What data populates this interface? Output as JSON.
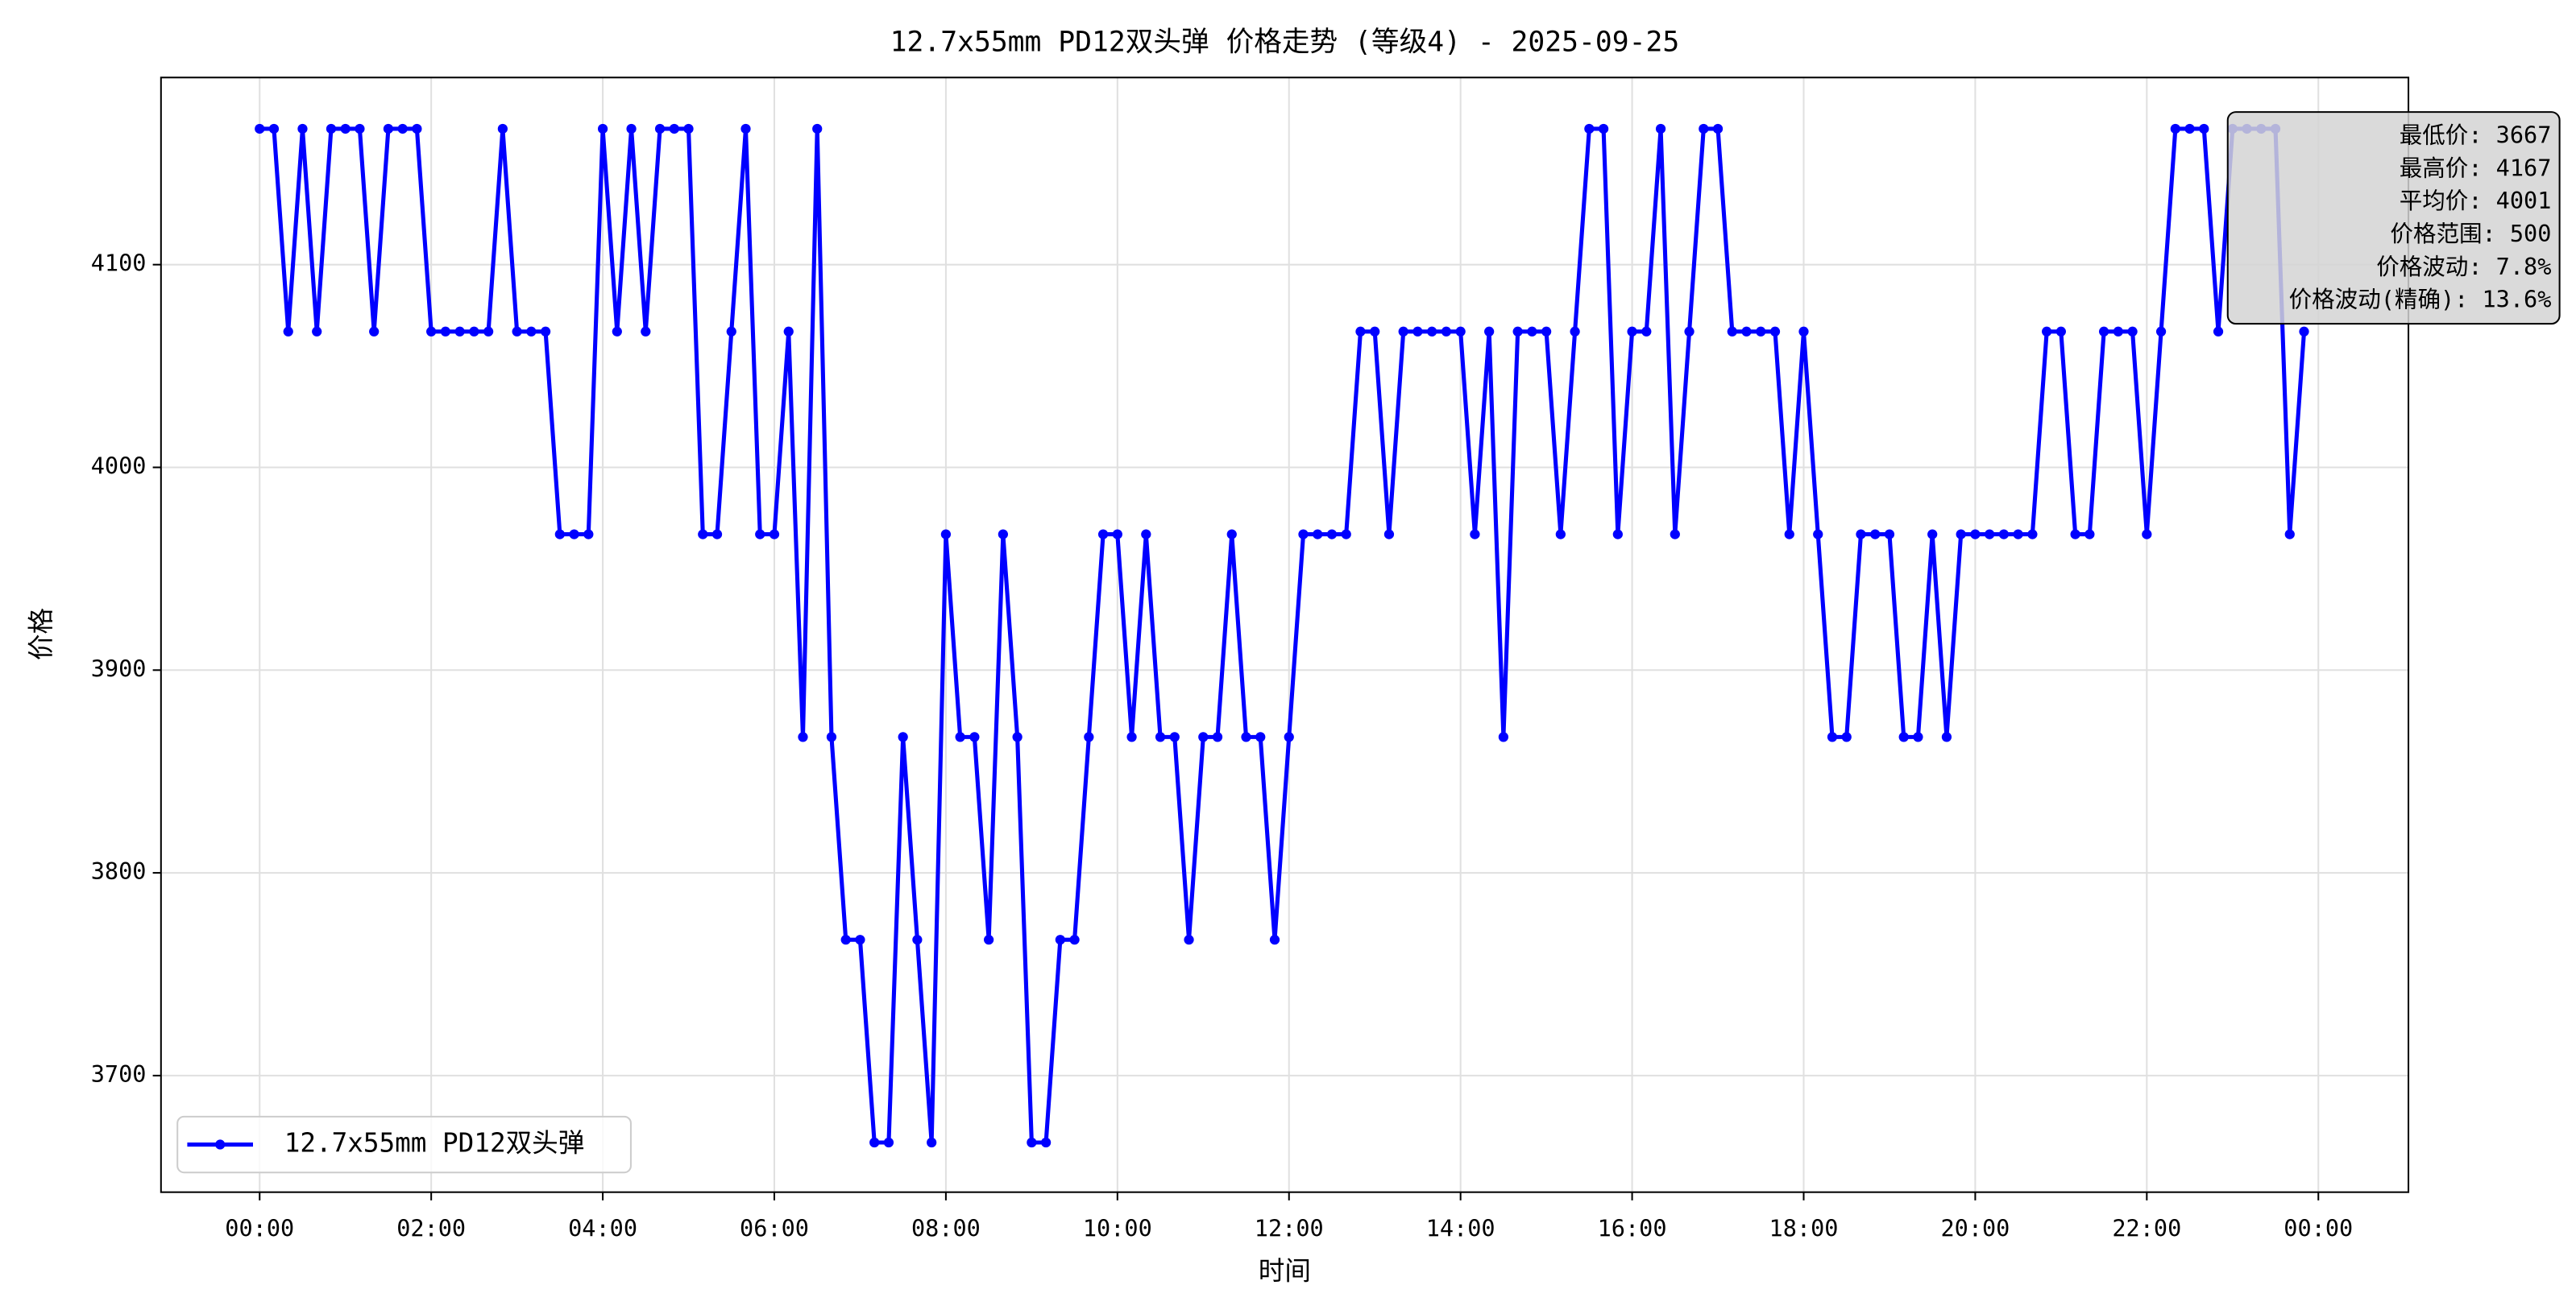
{
  "chart_data": {
    "type": "line",
    "title": "12.7x55mm PD12双头弹 价格走势 (等级4) - 2025-09-25",
    "x_label": "时间",
    "y_label": "价格",
    "x": [
      0,
      10,
      20,
      30,
      40,
      50,
      60,
      70,
      80,
      90,
      100,
      110,
      120,
      130,
      140,
      150,
      160,
      170,
      180,
      190,
      200,
      210,
      220,
      230,
      240,
      250,
      260,
      270,
      280,
      290,
      300,
      310,
      320,
      330,
      340,
      350,
      360,
      370,
      380,
      390,
      400,
      410,
      420,
      430,
      440,
      450,
      460,
      470,
      480,
      490,
      500,
      510,
      520,
      530,
      540,
      550,
      560,
      570,
      580,
      590,
      600,
      610,
      620,
      630,
      640,
      650,
      660,
      670,
      680,
      690,
      700,
      710,
      720,
      730,
      740,
      750,
      760,
      770,
      780,
      790,
      800,
      810,
      820,
      830,
      840,
      850,
      860,
      870,
      880,
      890,
      900,
      910,
      920,
      930,
      940,
      950,
      960,
      970,
      980,
      990,
      1000,
      1010,
      1020,
      1030,
      1040,
      1050,
      1060,
      1070,
      1080,
      1090,
      1100,
      1110,
      1120,
      1130,
      1140,
      1150,
      1160,
      1170,
      1180,
      1190,
      1200,
      1210,
      1220,
      1230,
      1240,
      1250,
      1260,
      1270,
      1280,
      1290,
      1300,
      1310,
      1320,
      1330,
      1340,
      1350,
      1360,
      1370,
      1380,
      1390,
      1400,
      1410,
      1420,
      1430
    ],
    "series": [
      {
        "name": "12.7x55mm PD12双头弹",
        "color": "#0000ff",
        "values": [
          4167,
          4167,
          4067,
          4167,
          4067,
          4167,
          4167,
          4167,
          4067,
          4167,
          4167,
          4167,
          4067,
          4067,
          4067,
          4067,
          4067,
          4167,
          4067,
          4067,
          4067,
          3967,
          3967,
          3967,
          4167,
          4067,
          4167,
          4067,
          4167,
          4167,
          4167,
          3967,
          3967,
          4067,
          4167,
          3967,
          3967,
          4067,
          3867,
          4167,
          3867,
          3767,
          3767,
          3667,
          3667,
          3867,
          3767,
          3667,
          3967,
          3867,
          3867,
          3767,
          3967,
          3867,
          3667,
          3667,
          3767,
          3767,
          3867,
          3967,
          3967,
          3867,
          3967,
          3867,
          3867,
          3767,
          3867,
          3867,
          3967,
          3867,
          3867,
          3767,
          3867,
          3967,
          3967,
          3967,
          3967,
          4067,
          4067,
          3967,
          4067,
          4067,
          4067,
          4067,
          4067,
          3967,
          4067,
          3867,
          4067,
          4067,
          4067,
          3967,
          4067,
          4167,
          4167,
          3967,
          4067,
          4067,
          4167,
          3967,
          4067,
          4167,
          4167,
          4067,
          4067,
          4067,
          4067,
          3967,
          4067,
          3967,
          3867,
          3867,
          3967,
          3967,
          3967,
          3867,
          3867,
          3967,
          3867,
          3967,
          3967,
          3967,
          3967,
          3967,
          3967,
          4067,
          4067,
          3967,
          3967,
          4067,
          4067,
          4067,
          3967,
          4067,
          4167,
          4167,
          4167,
          4067,
          4167,
          4167,
          4167,
          4167,
          3967,
          4067
        ]
      }
    ],
    "xlim": [
      -69,
      1503
    ],
    "xticks": [
      {
        "value": 0,
        "label": "00:00"
      },
      {
        "value": 120,
        "label": "02:00"
      },
      {
        "value": 240,
        "label": "04:00"
      },
      {
        "value": 360,
        "label": "06:00"
      },
      {
        "value": 480,
        "label": "08:00"
      },
      {
        "value": 600,
        "label": "10:00"
      },
      {
        "value": 720,
        "label": "12:00"
      },
      {
        "value": 840,
        "label": "14:00"
      },
      {
        "value": 960,
        "label": "16:00"
      },
      {
        "value": 1080,
        "label": "18:00"
      },
      {
        "value": 1200,
        "label": "20:00"
      },
      {
        "value": 1320,
        "label": "22:00"
      },
      {
        "value": 1440,
        "label": "00:00"
      }
    ],
    "ylim": [
      3642.5,
      4192.3
    ],
    "yticks": [
      3700,
      3800,
      3900,
      4000,
      4100
    ],
    "grid": true,
    "legend": "lower left",
    "annotation": [
      "最低价: 3667",
      "最高价: 4167",
      "平均价: 4001",
      "价格范围: 500",
      "价格波动: 7.8%",
      "价格波动(精确): 13.6%"
    ]
  }
}
